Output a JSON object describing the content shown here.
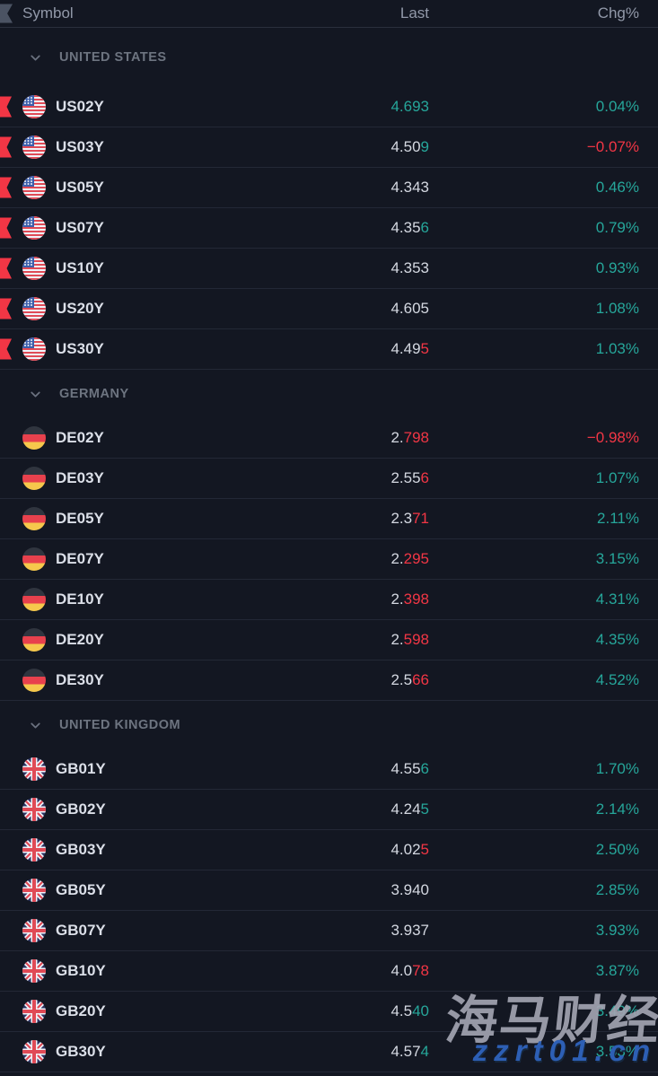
{
  "header": {
    "symbol_label": "Symbol",
    "last_label": "Last",
    "chg_label": "Chg%"
  },
  "colors": {
    "up": "#26a69a",
    "down": "#f23645",
    "neutral": "#d4d8e1",
    "background": "#131722"
  },
  "icons": {
    "header_flag": "flag-marker-icon",
    "section_chevron": "chevron-down-icon",
    "us_row_marker": "red-flag-marker-icon"
  },
  "sections": [
    {
      "name": "UNITED STATES",
      "rows": [
        {
          "symbol": "US02Y",
          "flag": "us",
          "flagged": true,
          "last": [
            [
              "4.693",
              "u"
            ]
          ],
          "chg": "0.04%",
          "chg_dir": "u"
        },
        {
          "symbol": "US03Y",
          "flag": "us",
          "flagged": true,
          "last": [
            [
              "4.50",
              "n"
            ],
            [
              "9",
              "u"
            ]
          ],
          "chg": "−0.07%",
          "chg_dir": "d"
        },
        {
          "symbol": "US05Y",
          "flag": "us",
          "flagged": true,
          "last": [
            [
              "4.343",
              "n"
            ]
          ],
          "chg": "0.46%",
          "chg_dir": "u"
        },
        {
          "symbol": "US07Y",
          "flag": "us",
          "flagged": true,
          "last": [
            [
              "4.35",
              "n"
            ],
            [
              "6",
              "u"
            ]
          ],
          "chg": "0.79%",
          "chg_dir": "u"
        },
        {
          "symbol": "US10Y",
          "flag": "us",
          "flagged": true,
          "last": [
            [
              "4.353",
              "n"
            ]
          ],
          "chg": "0.93%",
          "chg_dir": "u"
        },
        {
          "symbol": "US20Y",
          "flag": "us",
          "flagged": true,
          "last": [
            [
              "4.605",
              "n"
            ]
          ],
          "chg": "1.08%",
          "chg_dir": "u"
        },
        {
          "symbol": "US30Y",
          "flag": "us",
          "flagged": true,
          "last": [
            [
              "4.49",
              "n"
            ],
            [
              "5",
              "d"
            ]
          ],
          "chg": "1.03%",
          "chg_dir": "u"
        }
      ]
    },
    {
      "name": "GERMANY",
      "rows": [
        {
          "symbol": "DE02Y",
          "flag": "de",
          "flagged": false,
          "last": [
            [
              "2.",
              "n"
            ],
            [
              "798",
              "d"
            ]
          ],
          "chg": "−0.98%",
          "chg_dir": "d"
        },
        {
          "symbol": "DE03Y",
          "flag": "de",
          "flagged": false,
          "last": [
            [
              "2.55",
              "n"
            ],
            [
              "6",
              "d"
            ]
          ],
          "chg": "1.07%",
          "chg_dir": "u"
        },
        {
          "symbol": "DE05Y",
          "flag": "de",
          "flagged": false,
          "last": [
            [
              "2.3",
              "n"
            ],
            [
              "71",
              "d"
            ]
          ],
          "chg": "2.11%",
          "chg_dir": "u"
        },
        {
          "symbol": "DE07Y",
          "flag": "de",
          "flagged": false,
          "last": [
            [
              "2.",
              "n"
            ],
            [
              "295",
              "d"
            ]
          ],
          "chg": "3.15%",
          "chg_dir": "u"
        },
        {
          "symbol": "DE10Y",
          "flag": "de",
          "flagged": false,
          "last": [
            [
              "2.",
              "n"
            ],
            [
              "398",
              "d"
            ]
          ],
          "chg": "4.31%",
          "chg_dir": "u"
        },
        {
          "symbol": "DE20Y",
          "flag": "de",
          "flagged": false,
          "last": [
            [
              "2.",
              "n"
            ],
            [
              "598",
              "d"
            ]
          ],
          "chg": "4.35%",
          "chg_dir": "u"
        },
        {
          "symbol": "DE30Y",
          "flag": "de",
          "flagged": false,
          "last": [
            [
              "2.5",
              "n"
            ],
            [
              "66",
              "d"
            ]
          ],
          "chg": "4.52%",
          "chg_dir": "u"
        }
      ]
    },
    {
      "name": "UNITED KINGDOM",
      "rows": [
        {
          "symbol": "GB01Y",
          "flag": "gb",
          "flagged": false,
          "last": [
            [
              "4.55",
              "n"
            ],
            [
              "6",
              "u"
            ]
          ],
          "chg": "1.70%",
          "chg_dir": "u"
        },
        {
          "symbol": "GB02Y",
          "flag": "gb",
          "flagged": false,
          "last": [
            [
              "4.24",
              "n"
            ],
            [
              "5",
              "u"
            ]
          ],
          "chg": "2.14%",
          "chg_dir": "u"
        },
        {
          "symbol": "GB03Y",
          "flag": "gb",
          "flagged": false,
          "last": [
            [
              "4.02",
              "n"
            ],
            [
              "5",
              "d"
            ]
          ],
          "chg": "2.50%",
          "chg_dir": "u"
        },
        {
          "symbol": "GB05Y",
          "flag": "gb",
          "flagged": false,
          "last": [
            [
              "3.940",
              "n"
            ]
          ],
          "chg": "2.85%",
          "chg_dir": "u"
        },
        {
          "symbol": "GB07Y",
          "flag": "gb",
          "flagged": false,
          "last": [
            [
              "3.937",
              "n"
            ]
          ],
          "chg": "3.93%",
          "chg_dir": "u"
        },
        {
          "symbol": "GB10Y",
          "flag": "gb",
          "flagged": false,
          "last": [
            [
              "4.0",
              "n"
            ],
            [
              "78",
              "d"
            ]
          ],
          "chg": "3.87%",
          "chg_dir": "u"
        },
        {
          "symbol": "GB20Y",
          "flag": "gb",
          "flagged": false,
          "last": [
            [
              "4.5",
              "n"
            ],
            [
              "40",
              "u"
            ]
          ],
          "chg": "3.49%",
          "chg_dir": "u"
        },
        {
          "symbol": "GB30Y",
          "flag": "gb",
          "flagged": false,
          "last": [
            [
              "4.57",
              "n"
            ],
            [
              "4",
              "u"
            ]
          ],
          "chg": "3.53%",
          "chg_dir": "u"
        }
      ]
    }
  ],
  "watermark": {
    "text": "海马财经",
    "subtext": "zzrt01.cn"
  }
}
